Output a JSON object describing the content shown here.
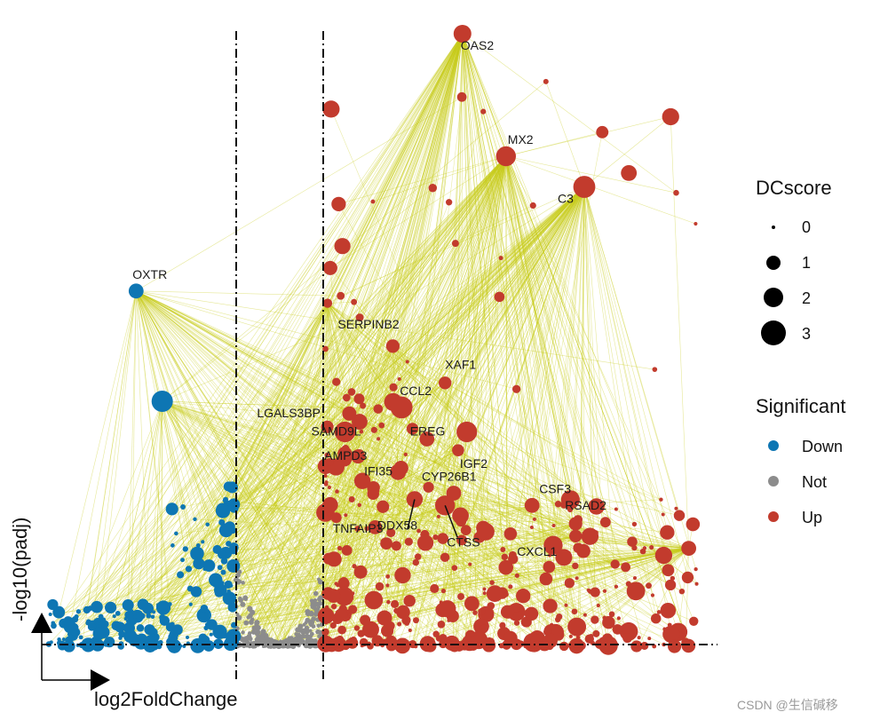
{
  "chart_data": {
    "type": "scatter",
    "xlabel": "log2FoldChange",
    "ylabel": "-log10(padj)",
    "axis_style": "arrows-only, no tick labels",
    "thresholds": {
      "x": [
        -1,
        1
      ],
      "y": 1.3
    },
    "legend_placement": "right",
    "size_legend": {
      "title": "DCscore",
      "entries": [
        {
          "label": "0",
          "value": 0
        },
        {
          "label": "1",
          "value": 1
        },
        {
          "label": "2",
          "value": 2
        },
        {
          "label": "3",
          "value": 3
        }
      ]
    },
    "color_legend": {
      "title": "Significant",
      "entries": [
        {
          "label": "Down",
          "color": "#0e76b3"
        },
        {
          "label": "Not",
          "color": "#8c8c8c"
        },
        {
          "label": "Up",
          "color": "#c23b2d"
        }
      ]
    },
    "network_edge_color": "#c8cc1a",
    "hubs": [
      {
        "gene": "OAS2",
        "x": 4.2,
        "y": 50,
        "dc": 2.0
      },
      {
        "gene": "MX2",
        "x": 5.2,
        "y": 40,
        "dc": 2.3
      },
      {
        "gene": "C3",
        "x": 7.0,
        "y": 37.5,
        "dc": 2.6
      },
      {
        "gene": "OXTR",
        "x": -3.3,
        "y": 29,
        "dc": 1.6
      },
      {
        "gene": "",
        "x": 9.4,
        "y": 8,
        "dc": 1.6
      },
      {
        "gene": "",
        "x": -2.7,
        "y": 20,
        "dc": 2.5
      },
      {
        "gene": "",
        "x": 1.1,
        "y": 28,
        "dc": 0.8
      }
    ],
    "labeled_genes": [
      {
        "gene": "SERPINB2",
        "x": 2.6,
        "y": 24.5,
        "sig": "Up",
        "dc": 1.4
      },
      {
        "gene": "XAF1",
        "x": 3.8,
        "y": 21.5,
        "sig": "Up",
        "dc": 1.3
      },
      {
        "gene": "CCL2",
        "x": 2.8,
        "y": 19.5,
        "sig": "Up",
        "dc": 2.6
      },
      {
        "gene": "LGALS3BP",
        "x": 1.6,
        "y": 19.0,
        "sig": "Up",
        "dc": 1.5
      },
      {
        "gene": "SAMD9L",
        "x": 1.5,
        "y": 17.5,
        "sig": "Up",
        "dc": 2.4
      },
      {
        "gene": "EREG",
        "x": 4.3,
        "y": 17.5,
        "sig": "Up",
        "dc": 2.4
      },
      {
        "gene": "IGF2",
        "x": 4.1,
        "y": 16.0,
        "sig": "Up",
        "dc": 1.2
      },
      {
        "gene": "AMPD3",
        "x": 1.8,
        "y": 15.5,
        "sig": "Up",
        "dc": 1.5
      },
      {
        "gene": "IFI35",
        "x": 1.9,
        "y": 13.5,
        "sig": "Up",
        "dc": 1.8
      },
      {
        "gene": "CYP26B1",
        "x": 4.0,
        "y": 12.5,
        "sig": "Up",
        "dc": 1.6
      },
      {
        "gene": "CSF3",
        "x": 5.8,
        "y": 11.5,
        "sig": "Up",
        "dc": 1.6
      },
      {
        "gene": "RSAD2",
        "x": 6.8,
        "y": 10.0,
        "sig": "Up",
        "dc": 1.4
      },
      {
        "gene": "DDX58",
        "x": 3.1,
        "y": 12.0,
        "sig": "Up",
        "dc": 1.8
      },
      {
        "gene": "CTSS",
        "x": 3.8,
        "y": 11.5,
        "sig": "Up",
        "dc": 2.3
      },
      {
        "gene": "CXCL1",
        "x": 6.8,
        "y": 9.0,
        "sig": "Up",
        "dc": 1.3
      },
      {
        "gene": "TNFAIP3",
        "x": 1.3,
        "y": 10.5,
        "sig": "Up",
        "dc": 1.0
      }
    ],
    "point_cloud": {
      "Down": {
        "x_range": [
          -5.5,
          -1.0
        ],
        "y_range": [
          0,
          20
        ],
        "count": 220
      },
      "Not": {
        "x_range": [
          -1.0,
          1.0
        ],
        "y_range": [
          0,
          10
        ],
        "count": 320
      },
      "Up": {
        "x_range": [
          1.0,
          10.0
        ],
        "y_range": [
          0,
          50
        ],
        "count": 420
      }
    }
  },
  "watermark": "CSDN @生信碱移"
}
